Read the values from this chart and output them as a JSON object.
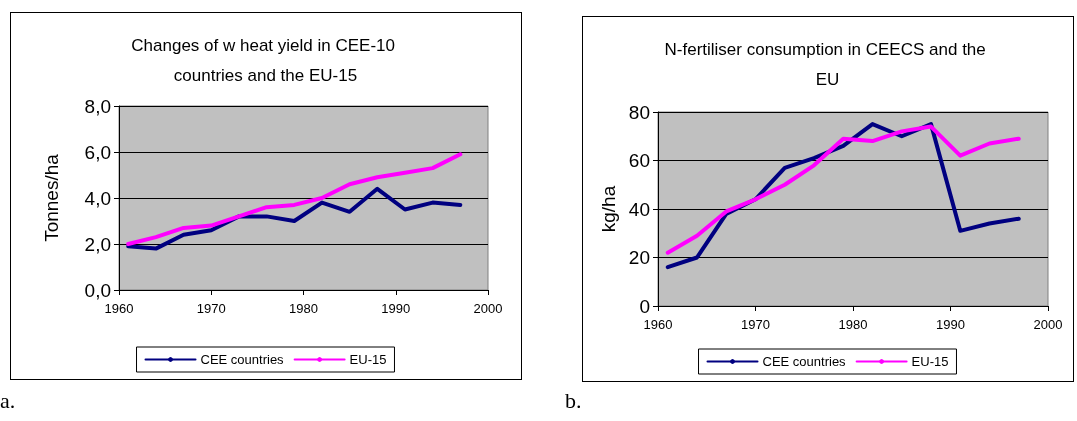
{
  "chart_data": [
    {
      "type": "line",
      "title": "Changes of w heat yield in CEE-10 countries and the EU-15",
      "ylabel": "Tonnes/ha",
      "annotations": [
        "a."
      ],
      "x": [
        1961,
        1964,
        1967,
        1970,
        1973,
        1976,
        1979,
        1982,
        1985,
        1988,
        1991,
        1994,
        1997
      ],
      "series": [
        {
          "name": "CEE countries",
          "color": "#000080",
          "values": [
            1.9,
            1.8,
            2.4,
            2.6,
            3.2,
            3.2,
            3.0,
            3.8,
            3.4,
            4.4,
            3.5,
            3.8,
            3.7
          ]
        },
        {
          "name": "EU-15",
          "color": "#ff00ff",
          "values": [
            2.0,
            2.3,
            2.7,
            2.8,
            3.2,
            3.6,
            3.7,
            4.0,
            4.6,
            4.9,
            5.1,
            5.3,
            5.9
          ]
        }
      ],
      "xlim": [
        1960,
        2000
      ],
      "xticks": [
        1960,
        1970,
        1980,
        1990,
        2000
      ],
      "ylim": [
        0,
        8
      ],
      "yticks": [
        {
          "value": 0,
          "label": "0,0"
        },
        {
          "value": 2,
          "label": "2,0"
        },
        {
          "value": 4,
          "label": "4,0"
        },
        {
          "value": 6,
          "label": "6,0"
        },
        {
          "value": 8,
          "label": "8,0"
        }
      ],
      "grid": "y",
      "legend": "bottom",
      "marker": "none",
      "line_style": "solid"
    },
    {
      "type": "line",
      "title": "N-fertiliser consumption in CEECS and the EU",
      "ylabel": "kg/ha",
      "annotations": [
        "b."
      ],
      "x": [
        1961,
        1964,
        1967,
        1970,
        1973,
        1976,
        1979,
        1982,
        1985,
        1988,
        1991,
        1994,
        1997
      ],
      "series": [
        {
          "name": "CEE countries",
          "color": "#000080",
          "values": [
            16,
            20,
            38,
            44,
            57,
            61,
            66,
            75,
            70,
            75,
            31,
            34,
            36
          ]
        },
        {
          "name": "EU-15",
          "color": "#ff00ff",
          "values": [
            22,
            29,
            39,
            44,
            50,
            58,
            69,
            68,
            72,
            74,
            62,
            67,
            69
          ]
        }
      ],
      "xlim": [
        1960,
        2000
      ],
      "xticks": [
        1960,
        1970,
        1980,
        1990,
        2000
      ],
      "ylim": [
        0,
        80
      ],
      "yticks": [
        0,
        20,
        40,
        60,
        80
      ],
      "grid": "y",
      "legend": "bottom",
      "marker": "none",
      "line_style": "solid"
    }
  ]
}
